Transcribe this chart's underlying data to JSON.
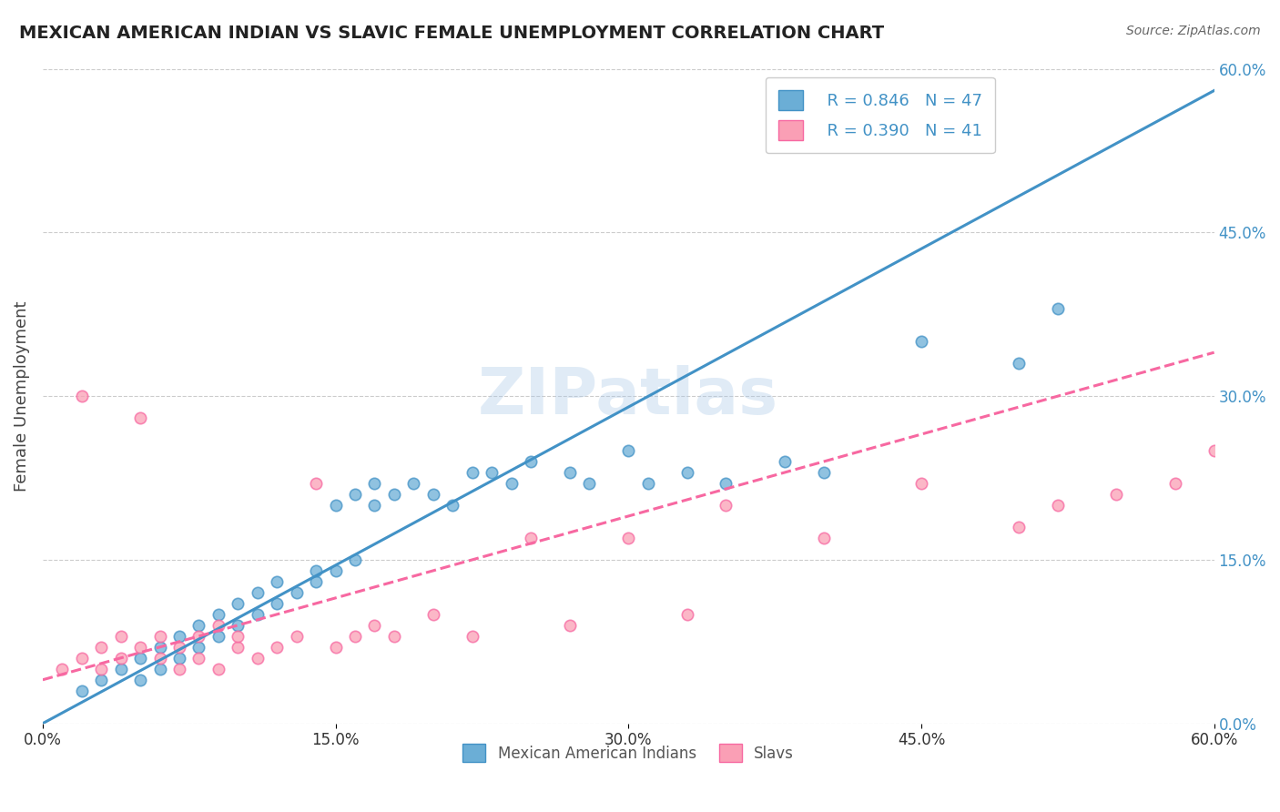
{
  "title": "MEXICAN AMERICAN INDIAN VS SLAVIC FEMALE UNEMPLOYMENT CORRELATION CHART",
  "source": "Source: ZipAtlas.com",
  "xlabel": "",
  "ylabel": "Female Unemployment",
  "xlim": [
    0.0,
    0.6
  ],
  "ylim": [
    0.0,
    0.6
  ],
  "xtick_labels": [
    "0.0%",
    "15.0%",
    "30.0%",
    "45.0%",
    "60.0%"
  ],
  "xtick_vals": [
    0.0,
    0.15,
    0.3,
    0.45,
    0.6
  ],
  "ytick_labels_right": [
    "60.0%",
    "45.0%",
    "30.0%",
    "15.0%",
    "0.0%"
  ],
  "ytick_vals_right": [
    0.6,
    0.45,
    0.3,
    0.15,
    0.0
  ],
  "watermark": "ZIPatlas",
  "legend_r1": "R = 0.846",
  "legend_n1": "N = 47",
  "legend_r2": "R = 0.390",
  "legend_n2": "N = 41",
  "legend_label1": "Mexican American Indians",
  "legend_label2": "Slavs",
  "color_blue": "#6baed6",
  "color_pink": "#fa9fb5",
  "color_blue_dark": "#4292c6",
  "color_pink_dark": "#f768a1",
  "blue_scatter_x": [
    0.02,
    0.03,
    0.04,
    0.05,
    0.05,
    0.06,
    0.06,
    0.07,
    0.07,
    0.08,
    0.08,
    0.09,
    0.09,
    0.1,
    0.1,
    0.11,
    0.11,
    0.12,
    0.12,
    0.13,
    0.14,
    0.14,
    0.15,
    0.15,
    0.16,
    0.16,
    0.17,
    0.17,
    0.18,
    0.19,
    0.2,
    0.21,
    0.22,
    0.23,
    0.24,
    0.25,
    0.27,
    0.28,
    0.3,
    0.31,
    0.33,
    0.35,
    0.38,
    0.4,
    0.45,
    0.5,
    0.52
  ],
  "blue_scatter_y": [
    0.03,
    0.04,
    0.05,
    0.04,
    0.06,
    0.05,
    0.07,
    0.06,
    0.08,
    0.07,
    0.09,
    0.08,
    0.1,
    0.09,
    0.11,
    0.1,
    0.12,
    0.11,
    0.13,
    0.12,
    0.13,
    0.14,
    0.14,
    0.2,
    0.15,
    0.21,
    0.2,
    0.22,
    0.21,
    0.22,
    0.21,
    0.2,
    0.23,
    0.23,
    0.22,
    0.24,
    0.23,
    0.22,
    0.25,
    0.22,
    0.23,
    0.22,
    0.24,
    0.23,
    0.35,
    0.33,
    0.38
  ],
  "pink_scatter_x": [
    0.01,
    0.02,
    0.02,
    0.03,
    0.03,
    0.04,
    0.04,
    0.05,
    0.05,
    0.06,
    0.06,
    0.07,
    0.07,
    0.08,
    0.08,
    0.09,
    0.09,
    0.1,
    0.1,
    0.11,
    0.12,
    0.13,
    0.14,
    0.15,
    0.16,
    0.17,
    0.18,
    0.2,
    0.22,
    0.25,
    0.27,
    0.3,
    0.33,
    0.35,
    0.4,
    0.45,
    0.5,
    0.52,
    0.55,
    0.58,
    0.6
  ],
  "pink_scatter_y": [
    0.05,
    0.06,
    0.3,
    0.05,
    0.07,
    0.06,
    0.08,
    0.07,
    0.28,
    0.06,
    0.08,
    0.05,
    0.07,
    0.06,
    0.08,
    0.09,
    0.05,
    0.07,
    0.08,
    0.06,
    0.07,
    0.08,
    0.22,
    0.07,
    0.08,
    0.09,
    0.08,
    0.1,
    0.08,
    0.17,
    0.09,
    0.17,
    0.1,
    0.2,
    0.17,
    0.22,
    0.18,
    0.2,
    0.21,
    0.22,
    0.25
  ],
  "blue_line_x": [
    0.0,
    0.6
  ],
  "blue_line_y": [
    0.0,
    0.58
  ],
  "pink_line_x": [
    0.0,
    0.6
  ],
  "pink_line_y": [
    0.04,
    0.34
  ],
  "background_color": "#ffffff",
  "grid_color": "#cccccc"
}
